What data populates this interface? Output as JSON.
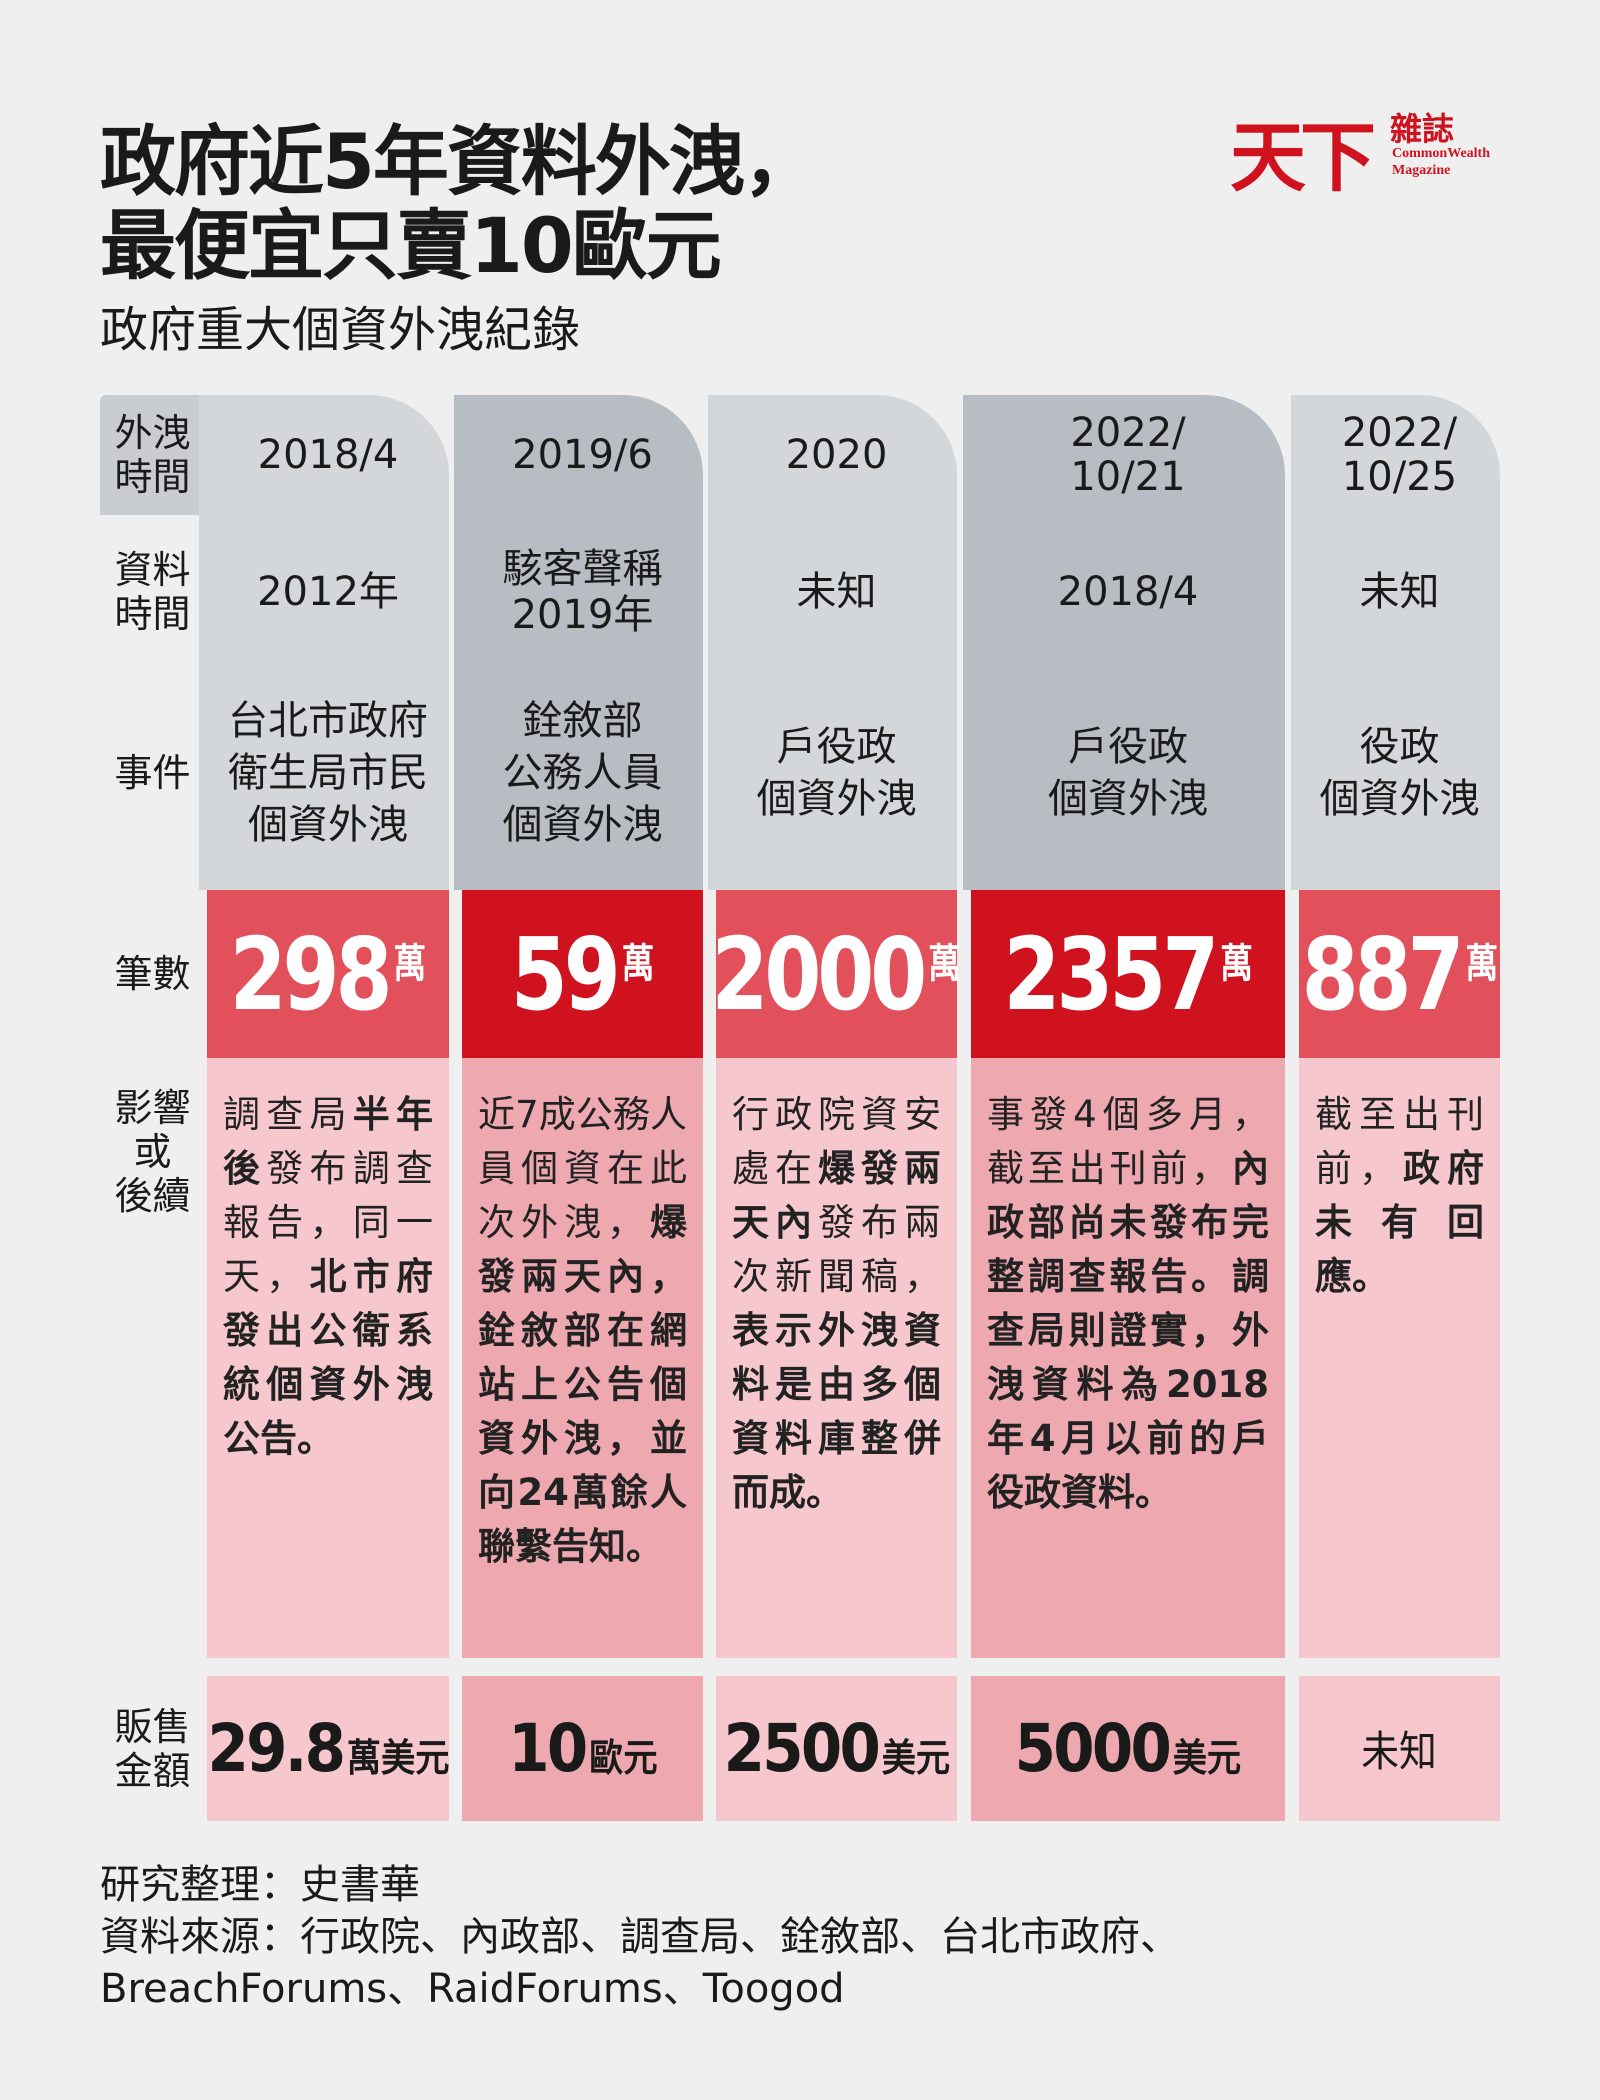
{
  "header": {
    "title_lines": [
      "政府近5年資料外洩，",
      "最便宜只賣10歐元"
    ],
    "subtitle": "政府重大個資外洩紀錄"
  },
  "logo": {
    "main": "天下",
    "side": "雜誌",
    "en_lines": [
      "CommonWealth",
      "Magazine"
    ]
  },
  "row_labels": {
    "leak_time": "外洩\n時間",
    "data_time": "資料\n時間",
    "event": "事件",
    "count": "筆數",
    "impact": "影響\n或\n後續",
    "sale": "販售\n金額"
  },
  "columns": [
    {
      "leak_time": "2018/4",
      "data_time": "2012年",
      "event": "台北市政府\n衛生局市民\n個資外洩",
      "count": {
        "number": 298,
        "unit": "萬"
      },
      "impact": [
        {
          "text": "調查局",
          "bold": false
        },
        {
          "text": "半年後",
          "bold": true
        },
        {
          "text": "發布調查報告，同一天，",
          "bold": false
        },
        {
          "text": "北市府發出公衛系統個資外洩公告。",
          "bold": true
        }
      ],
      "sale": {
        "amount": 29.8,
        "unit": "萬美元"
      }
    },
    {
      "leak_time": "2019/6",
      "data_time": "駭客聲稱\n2019年",
      "event": "銓敘部\n公務人員\n個資外洩",
      "count": {
        "number": 59,
        "unit": "萬"
      },
      "impact": [
        {
          "text": "近7成公務人員個資在此次外洩，",
          "bold": false
        },
        {
          "text": "爆發兩天內，銓敘部在網站上公告個資外洩，並向24萬餘人聯繫告知。",
          "bold": true
        }
      ],
      "sale": {
        "amount": 10,
        "unit": "歐元"
      }
    },
    {
      "leak_time": "2020",
      "data_time": "未知",
      "event": "戶役政\n個資外洩",
      "count": {
        "number": 2000,
        "unit": "萬"
      },
      "impact": [
        {
          "text": "行政院資安處在",
          "bold": false
        },
        {
          "text": "爆發兩天內",
          "bold": true
        },
        {
          "text": "發布兩次新聞稿，",
          "bold": false
        },
        {
          "text": "表示外洩資料是由多個資料庫整併而成。",
          "bold": true
        }
      ],
      "sale": {
        "amount": 2500,
        "unit": "美元"
      }
    },
    {
      "leak_time": "2022/\n10/21",
      "data_time": "2018/4",
      "event": "戶役政\n個資外洩",
      "count": {
        "number": 2357,
        "unit": "萬"
      },
      "impact": [
        {
          "text": "事發4個多月，截至出刊前，",
          "bold": false
        },
        {
          "text": "內政部尚未發布完整調查報告。調查局則證實，外洩資料為2018年4月以前的戶役政資料。",
          "bold": true
        }
      ],
      "sale": {
        "amount": 5000,
        "unit": "美元"
      }
    },
    {
      "leak_time": "2022/\n10/25",
      "data_time": "未知",
      "event": "役政\n個資外洩",
      "count": {
        "number": 887,
        "unit": "萬"
      },
      "impact": [
        {
          "text": "截至出刊前，",
          "bold": false
        },
        {
          "text": "政府未有回應。",
          "bold": true
        }
      ],
      "sale": {
        "text": "未知"
      }
    }
  ],
  "footer": {
    "lines": [
      "研究整理：史書華",
      "資料來源：行政院、內政部、調查局、銓敘部、台北市政府、",
      "BreachForums、RaidForums、Toogod"
    ]
  }
}
